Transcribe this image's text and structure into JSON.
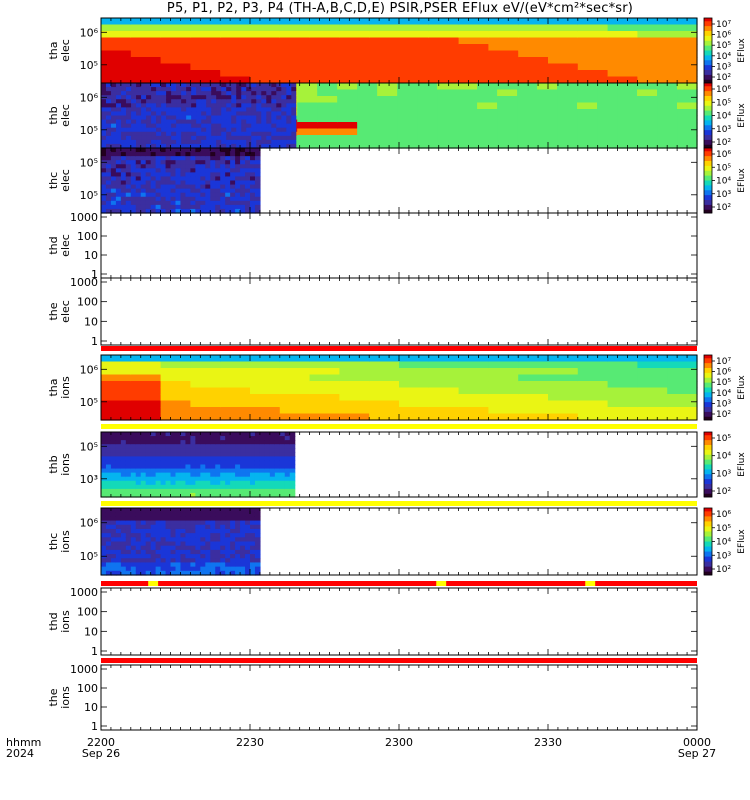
{
  "title": "P5, P1, P2, P3, P4 (TH-A,B,C,D,E) PSIR,PSER EFlux eV/(eV*cm²*sec*sr)",
  "colorbar_label": "EFlux",
  "colormap": [
    "#23001e",
    "#3a0c5c",
    "#3b2ea0",
    "#1a36d8",
    "#0f74f0",
    "#05b4ef",
    "#14d9b9",
    "#57ea74",
    "#a6f23a",
    "#eaf514",
    "#ffd200",
    "#ff8a00",
    "#ff3c00",
    "#e00000"
  ],
  "no_data_color": "#ffffff",
  "flag_colors": {
    "red": "#ff0000",
    "yellow": "#ffff00"
  },
  "time_axis": {
    "label_line1": "hhmm",
    "label_line2": "2024",
    "ticks": [
      {
        "t": 0,
        "label": "2200",
        "date": "Sep 26"
      },
      {
        "t": 30,
        "label": "2230",
        "date": ""
      },
      {
        "t": 60,
        "label": "2300",
        "date": ""
      },
      {
        "t": 90,
        "label": "2330",
        "date": ""
      },
      {
        "t": 120,
        "label": "0000",
        "date": "Sep 27"
      }
    ],
    "range_minutes": [
      0,
      120
    ]
  },
  "chart_data": [
    {
      "type": "heatmap",
      "panel": "tha elec",
      "ylabel": [
        "tha",
        "elec"
      ],
      "yscale": "log",
      "yticks": [
        "10⁶",
        "10⁵"
      ],
      "data_end_minute": 120,
      "colorbar": [
        "10⁷",
        "10⁶",
        "10⁵",
        "10⁴",
        "10³",
        "10²"
      ],
      "pattern": "tha_elec",
      "flag": null
    },
    {
      "type": "heatmap",
      "panel": "thb elec",
      "ylabel": [
        "thb",
        "elec"
      ],
      "yscale": "log",
      "yticks": [
        "10⁶",
        "10⁵"
      ],
      "data_end_minute": 120,
      "colorbar": [
        "10⁶",
        "10⁵",
        "10⁴",
        "10³",
        "10²"
      ],
      "pattern": "thb_elec",
      "flag": null
    },
    {
      "type": "heatmap",
      "panel": "thc elec",
      "ylabel": [
        "thc",
        "elec"
      ],
      "yscale": "log",
      "yticks": [
        "10⁵",
        "10⁵"
      ],
      "data_end_minute": 32,
      "colorbar": [
        "10⁶",
        "10⁵",
        "10⁴",
        "10³",
        "10²"
      ],
      "pattern": "thc_elec",
      "flag": null
    },
    {
      "type": "heatmap",
      "panel": "thd elec",
      "ylabel": [
        "thd",
        "elec"
      ],
      "yscale": "log",
      "yticks": [
        "1000",
        "100",
        "10",
        "1"
      ],
      "data_end_minute": 0,
      "colorbar": null,
      "pattern": "empty",
      "flag": null
    },
    {
      "type": "heatmap",
      "panel": "the elec",
      "ylabel": [
        "the",
        "elec"
      ],
      "yscale": "log",
      "yticks": [
        "1000",
        "100",
        "10",
        "1"
      ],
      "data_end_minute": 0,
      "colorbar": null,
      "pattern": "empty",
      "flag": "red"
    },
    {
      "type": "heatmap",
      "panel": "tha ions",
      "ylabel": [
        "tha",
        "ions"
      ],
      "yscale": "log",
      "yticks": [
        "10⁶",
        "10⁵"
      ],
      "data_end_minute": 120,
      "colorbar": [
        "10⁷",
        "10⁶",
        "10⁵",
        "10⁴",
        "10³",
        "10²"
      ],
      "pattern": "tha_ions",
      "flag": "yellow"
    },
    {
      "type": "heatmap",
      "panel": "thb ions",
      "ylabel": [
        "thb",
        "ions"
      ],
      "yscale": "log",
      "yticks": [
        "10⁵",
        "10³"
      ],
      "data_end_minute": 39,
      "colorbar": [
        "10⁵",
        "10⁴",
        "10³",
        "10²"
      ],
      "pattern": "thb_ions",
      "flag": "yellow"
    },
    {
      "type": "heatmap",
      "panel": "thc ions",
      "ylabel": [
        "thc",
        "ions"
      ],
      "yscale": "log",
      "yticks": [
        "10⁶",
        "10⁵"
      ],
      "data_end_minute": 32,
      "colorbar": [
        "10⁶",
        "10⁵",
        "10⁴",
        "10³",
        "10²"
      ],
      "pattern": "thc_ions",
      "flag": "red_yellow"
    },
    {
      "type": "heatmap",
      "panel": "thd ions",
      "ylabel": [
        "thd",
        "ions"
      ],
      "yscale": "log",
      "yticks": [
        "1000",
        "100",
        "10",
        "1"
      ],
      "data_end_minute": 0,
      "colorbar": null,
      "pattern": "empty",
      "flag": "red"
    },
    {
      "type": "heatmap",
      "panel": "the ions",
      "ylabel": [
        "the",
        "ions"
      ],
      "yscale": "log",
      "yticks": [
        "1000",
        "100",
        "10",
        "1"
      ],
      "data_end_minute": 0,
      "colorbar": null,
      "pattern": "empty",
      "flag": null
    }
  ]
}
